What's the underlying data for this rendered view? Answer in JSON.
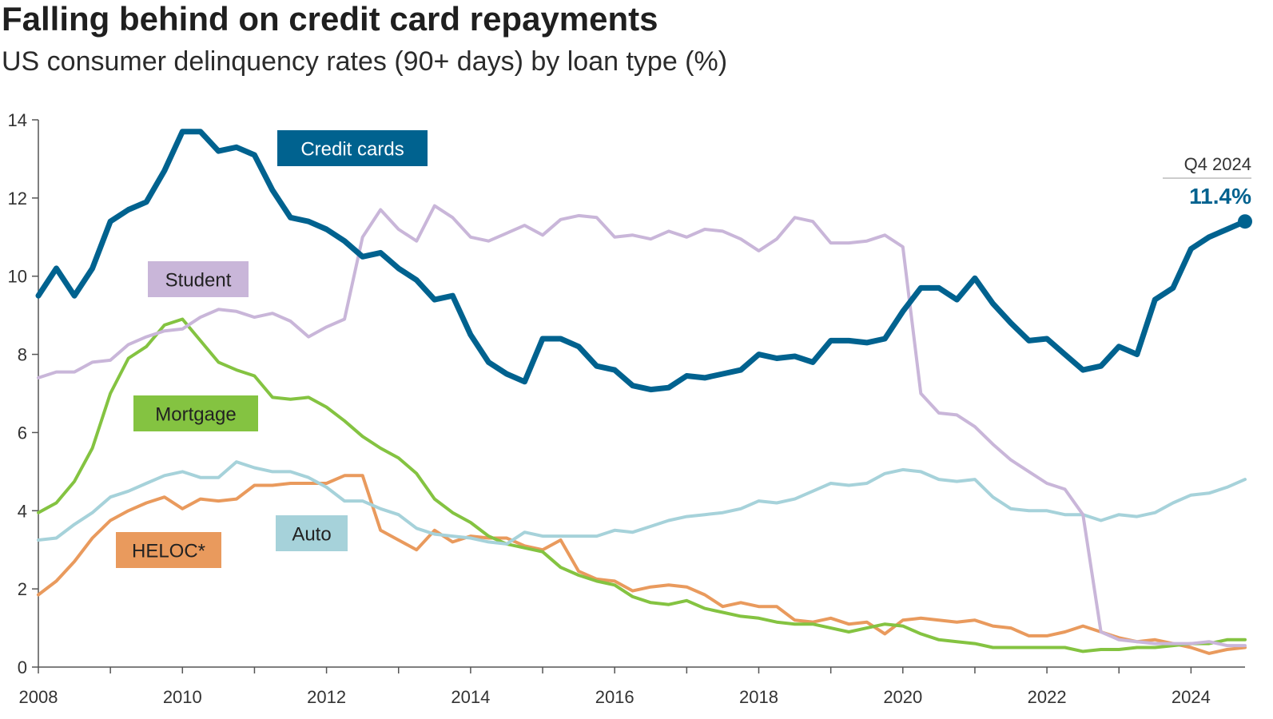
{
  "header": {
    "title": "Falling behind on credit card repayments",
    "subtitle": "US consumer delinquency rates (90+ days) by loan type (%)"
  },
  "chart_data": {
    "type": "line",
    "title": "Falling behind on credit card repayments",
    "subtitle": "US consumer delinquency rates (90+ days) by loan type (%)",
    "xlabel": "",
    "ylabel": "",
    "xlim": [
      2008,
      2024.75
    ],
    "ylim": [
      0,
      14
    ],
    "x_ticks": [
      "2008",
      "2010",
      "2012",
      "2014",
      "2016",
      "2018",
      "2020",
      "2022",
      "2024"
    ],
    "y_ticks": [
      "0",
      "2",
      "4",
      "6",
      "8",
      "10",
      "12",
      "14"
    ],
    "grid": false,
    "x_start": 2008,
    "x_step": 0.25,
    "series": [
      {
        "name": "Credit cards",
        "color": "#00628f",
        "values": [
          9.5,
          10.2,
          9.5,
          10.2,
          11.4,
          11.7,
          11.9,
          12.7,
          13.7,
          13.7,
          13.2,
          13.3,
          13.1,
          12.2,
          11.5,
          11.4,
          11.2,
          10.9,
          10.5,
          10.6,
          10.2,
          9.9,
          9.4,
          9.5,
          8.5,
          7.8,
          7.5,
          7.3,
          8.4,
          8.4,
          8.2,
          7.7,
          7.6,
          7.2,
          7.1,
          7.15,
          7.45,
          7.4,
          7.5,
          7.6,
          8.0,
          7.9,
          7.95,
          7.8,
          8.35,
          8.35,
          8.3,
          8.4,
          9.1,
          9.7,
          9.7,
          9.4,
          9.95,
          9.3,
          8.8,
          8.35,
          8.4,
          8.0,
          7.6,
          7.7,
          8.2,
          8.0,
          9.4,
          9.7,
          10.7,
          11.0,
          11.2,
          11.4
        ]
      },
      {
        "name": "Student",
        "color": "#c9b6d9",
        "values": [
          7.4,
          7.55,
          7.55,
          7.8,
          7.85,
          8.25,
          8.45,
          8.6,
          8.65,
          8.95,
          9.15,
          9.1,
          8.95,
          9.05,
          8.85,
          8.45,
          8.7,
          8.9,
          11.0,
          11.7,
          11.2,
          10.9,
          11.8,
          11.5,
          11.0,
          10.9,
          11.1,
          11.3,
          11.05,
          11.45,
          11.55,
          11.5,
          11.0,
          11.05,
          10.95,
          11.15,
          11.0,
          11.2,
          11.15,
          10.95,
          10.65,
          10.95,
          11.5,
          11.4,
          10.85,
          10.85,
          10.9,
          11.05,
          10.75,
          7.0,
          6.5,
          6.45,
          6.15,
          5.7,
          5.3,
          5.0,
          4.7,
          4.55,
          3.9,
          0.9,
          0.7,
          0.65,
          0.6,
          0.6,
          0.6,
          0.65,
          0.55,
          0.55
        ]
      },
      {
        "name": "Mortgage",
        "color": "#84c341",
        "values": [
          3.95,
          4.2,
          4.75,
          5.6,
          7.0,
          7.9,
          8.2,
          8.75,
          8.9,
          8.35,
          7.8,
          7.6,
          7.45,
          6.9,
          6.85,
          6.9,
          6.65,
          6.3,
          5.9,
          5.6,
          5.35,
          4.95,
          4.3,
          3.95,
          3.7,
          3.35,
          3.15,
          3.05,
          2.95,
          2.55,
          2.35,
          2.2,
          2.1,
          1.8,
          1.65,
          1.6,
          1.7,
          1.5,
          1.4,
          1.3,
          1.25,
          1.15,
          1.1,
          1.1,
          1.0,
          0.9,
          1.0,
          1.1,
          1.05,
          0.85,
          0.7,
          0.65,
          0.6,
          0.5,
          0.5,
          0.5,
          0.5,
          0.5,
          0.4,
          0.45,
          0.45,
          0.5,
          0.5,
          0.55,
          0.6,
          0.6,
          0.7,
          0.7
        ]
      },
      {
        "name": "Auto",
        "color": "#a6d2da",
        "values": [
          3.25,
          3.3,
          3.65,
          3.95,
          4.35,
          4.5,
          4.7,
          4.9,
          5.0,
          4.85,
          4.85,
          5.25,
          5.1,
          5.0,
          5.0,
          4.85,
          4.6,
          4.25,
          4.25,
          4.05,
          3.9,
          3.55,
          3.4,
          3.35,
          3.3,
          3.2,
          3.15,
          3.45,
          3.35,
          3.35,
          3.35,
          3.35,
          3.5,
          3.45,
          3.6,
          3.75,
          3.85,
          3.9,
          3.95,
          4.05,
          4.25,
          4.2,
          4.3,
          4.5,
          4.7,
          4.65,
          4.7,
          4.95,
          5.05,
          5.0,
          4.8,
          4.75,
          4.8,
          4.35,
          4.05,
          4.0,
          4.0,
          3.9,
          3.9,
          3.75,
          3.9,
          3.85,
          3.95,
          4.2,
          4.4,
          4.45,
          4.6,
          4.8
        ]
      },
      {
        "name": "HELOC*",
        "color": "#e99a5d",
        "values": [
          1.85,
          2.2,
          2.7,
          3.3,
          3.75,
          4.0,
          4.2,
          4.35,
          4.05,
          4.3,
          4.25,
          4.3,
          4.65,
          4.65,
          4.7,
          4.7,
          4.7,
          4.9,
          4.9,
          3.5,
          3.25,
          3.0,
          3.5,
          3.2,
          3.35,
          3.3,
          3.3,
          3.1,
          3.0,
          3.25,
          2.45,
          2.25,
          2.2,
          1.95,
          2.05,
          2.1,
          2.05,
          1.85,
          1.55,
          1.65,
          1.55,
          1.55,
          1.2,
          1.15,
          1.25,
          1.1,
          1.15,
          0.85,
          1.2,
          1.25,
          1.2,
          1.15,
          1.2,
          1.05,
          1.0,
          0.8,
          0.8,
          0.9,
          1.05,
          0.9,
          0.75,
          0.65,
          0.7,
          0.6,
          0.5,
          0.35,
          0.45,
          0.5
        ]
      }
    ],
    "legend": {
      "placement": "inline labels",
      "items": [
        {
          "name": "Credit cards",
          "text_color": "#ffffff",
          "box_color": "#00628f"
        },
        {
          "name": "Student",
          "text_color": "#222222",
          "box_color": "#c9b6d9"
        },
        {
          "name": "Mortgage",
          "text_color": "#222222",
          "box_color": "#84c341"
        },
        {
          "name": "HELOC*",
          "text_color": "#222222",
          "box_color": "#e99a5d"
        },
        {
          "name": "Auto",
          "text_color": "#222222",
          "box_color": "#a6d2da"
        }
      ]
    },
    "annotation": {
      "label": "Q4 2024",
      "value": "11.4%",
      "x": 2024.75,
      "y": 11.4,
      "color": "#00628f"
    }
  }
}
